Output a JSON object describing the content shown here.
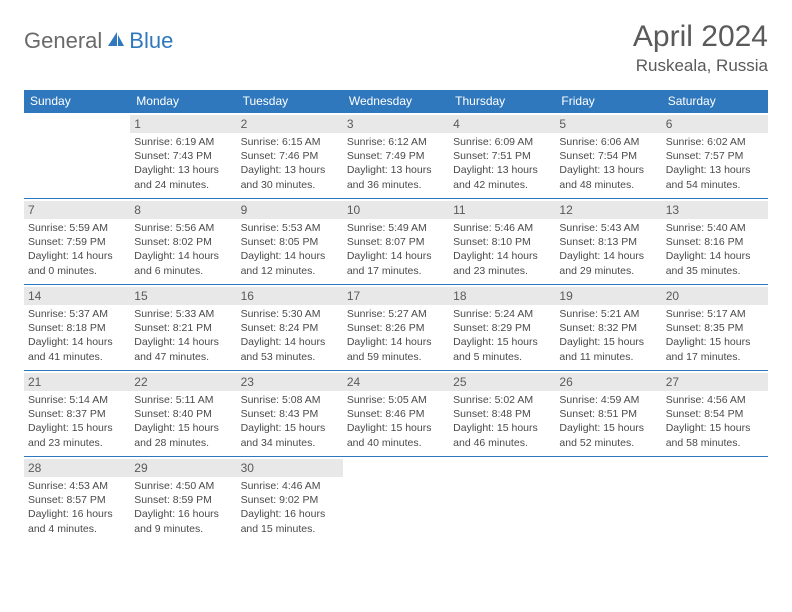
{
  "logo": {
    "part1": "General",
    "part2": "Blue"
  },
  "header": {
    "month": "April 2024",
    "location": "Ruskeala, Russia"
  },
  "colors": {
    "accent": "#2f78bd",
    "daybg": "#e8e8e8",
    "text_muted": "#5a5a5a",
    "text_body": "#4a4a4a",
    "logo_gray": "#6a6a6a"
  },
  "days_of_week": [
    "Sunday",
    "Monday",
    "Tuesday",
    "Wednesday",
    "Thursday",
    "Friday",
    "Saturday"
  ],
  "weeks": [
    [
      {
        "empty": true
      },
      {
        "n": "1",
        "sunrise": "6:19 AM",
        "sunset": "7:43 PM",
        "dl1": "Daylight: 13 hours",
        "dl2": "and 24 minutes."
      },
      {
        "n": "2",
        "sunrise": "6:15 AM",
        "sunset": "7:46 PM",
        "dl1": "Daylight: 13 hours",
        "dl2": "and 30 minutes."
      },
      {
        "n": "3",
        "sunrise": "6:12 AM",
        "sunset": "7:49 PM",
        "dl1": "Daylight: 13 hours",
        "dl2": "and 36 minutes."
      },
      {
        "n": "4",
        "sunrise": "6:09 AM",
        "sunset": "7:51 PM",
        "dl1": "Daylight: 13 hours",
        "dl2": "and 42 minutes."
      },
      {
        "n": "5",
        "sunrise": "6:06 AM",
        "sunset": "7:54 PM",
        "dl1": "Daylight: 13 hours",
        "dl2": "and 48 minutes."
      },
      {
        "n": "6",
        "sunrise": "6:02 AM",
        "sunset": "7:57 PM",
        "dl1": "Daylight: 13 hours",
        "dl2": "and 54 minutes."
      }
    ],
    [
      {
        "n": "7",
        "sunrise": "5:59 AM",
        "sunset": "7:59 PM",
        "dl1": "Daylight: 14 hours",
        "dl2": "and 0 minutes."
      },
      {
        "n": "8",
        "sunrise": "5:56 AM",
        "sunset": "8:02 PM",
        "dl1": "Daylight: 14 hours",
        "dl2": "and 6 minutes."
      },
      {
        "n": "9",
        "sunrise": "5:53 AM",
        "sunset": "8:05 PM",
        "dl1": "Daylight: 14 hours",
        "dl2": "and 12 minutes."
      },
      {
        "n": "10",
        "sunrise": "5:49 AM",
        "sunset": "8:07 PM",
        "dl1": "Daylight: 14 hours",
        "dl2": "and 17 minutes."
      },
      {
        "n": "11",
        "sunrise": "5:46 AM",
        "sunset": "8:10 PM",
        "dl1": "Daylight: 14 hours",
        "dl2": "and 23 minutes."
      },
      {
        "n": "12",
        "sunrise": "5:43 AM",
        "sunset": "8:13 PM",
        "dl1": "Daylight: 14 hours",
        "dl2": "and 29 minutes."
      },
      {
        "n": "13",
        "sunrise": "5:40 AM",
        "sunset": "8:16 PM",
        "dl1": "Daylight: 14 hours",
        "dl2": "and 35 minutes."
      }
    ],
    [
      {
        "n": "14",
        "sunrise": "5:37 AM",
        "sunset": "8:18 PM",
        "dl1": "Daylight: 14 hours",
        "dl2": "and 41 minutes."
      },
      {
        "n": "15",
        "sunrise": "5:33 AM",
        "sunset": "8:21 PM",
        "dl1": "Daylight: 14 hours",
        "dl2": "and 47 minutes."
      },
      {
        "n": "16",
        "sunrise": "5:30 AM",
        "sunset": "8:24 PM",
        "dl1": "Daylight: 14 hours",
        "dl2": "and 53 minutes."
      },
      {
        "n": "17",
        "sunrise": "5:27 AM",
        "sunset": "8:26 PM",
        "dl1": "Daylight: 14 hours",
        "dl2": "and 59 minutes."
      },
      {
        "n": "18",
        "sunrise": "5:24 AM",
        "sunset": "8:29 PM",
        "dl1": "Daylight: 15 hours",
        "dl2": "and 5 minutes."
      },
      {
        "n": "19",
        "sunrise": "5:21 AM",
        "sunset": "8:32 PM",
        "dl1": "Daylight: 15 hours",
        "dl2": "and 11 minutes."
      },
      {
        "n": "20",
        "sunrise": "5:17 AM",
        "sunset": "8:35 PM",
        "dl1": "Daylight: 15 hours",
        "dl2": "and 17 minutes."
      }
    ],
    [
      {
        "n": "21",
        "sunrise": "5:14 AM",
        "sunset": "8:37 PM",
        "dl1": "Daylight: 15 hours",
        "dl2": "and 23 minutes."
      },
      {
        "n": "22",
        "sunrise": "5:11 AM",
        "sunset": "8:40 PM",
        "dl1": "Daylight: 15 hours",
        "dl2": "and 28 minutes."
      },
      {
        "n": "23",
        "sunrise": "5:08 AM",
        "sunset": "8:43 PM",
        "dl1": "Daylight: 15 hours",
        "dl2": "and 34 minutes."
      },
      {
        "n": "24",
        "sunrise": "5:05 AM",
        "sunset": "8:46 PM",
        "dl1": "Daylight: 15 hours",
        "dl2": "and 40 minutes."
      },
      {
        "n": "25",
        "sunrise": "5:02 AM",
        "sunset": "8:48 PM",
        "dl1": "Daylight: 15 hours",
        "dl2": "and 46 minutes."
      },
      {
        "n": "26",
        "sunrise": "4:59 AM",
        "sunset": "8:51 PM",
        "dl1": "Daylight: 15 hours",
        "dl2": "and 52 minutes."
      },
      {
        "n": "27",
        "sunrise": "4:56 AM",
        "sunset": "8:54 PM",
        "dl1": "Daylight: 15 hours",
        "dl2": "and 58 minutes."
      }
    ],
    [
      {
        "n": "28",
        "sunrise": "4:53 AM",
        "sunset": "8:57 PM",
        "dl1": "Daylight: 16 hours",
        "dl2": "and 4 minutes."
      },
      {
        "n": "29",
        "sunrise": "4:50 AM",
        "sunset": "8:59 PM",
        "dl1": "Daylight: 16 hours",
        "dl2": "and 9 minutes."
      },
      {
        "n": "30",
        "sunrise": "4:46 AM",
        "sunset": "9:02 PM",
        "dl1": "Daylight: 16 hours",
        "dl2": "and 15 minutes."
      },
      {
        "empty": true
      },
      {
        "empty": true
      },
      {
        "empty": true
      },
      {
        "empty": true
      }
    ]
  ],
  "labels": {
    "sunrise_prefix": "Sunrise: ",
    "sunset_prefix": "Sunset: "
  }
}
